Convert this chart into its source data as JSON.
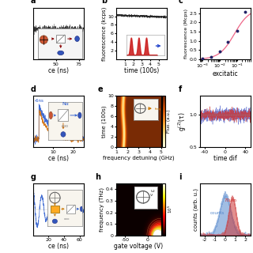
{
  "bg_color": "#f8f8f8",
  "label_fontsize": 5.5,
  "tick_fontsize": 4.5,
  "panels": {
    "a": {
      "x_ticks": [
        50,
        75
      ],
      "x_label": "ce (ns)"
    },
    "b": {
      "x_label": "time (100s)",
      "y_label": "fluorescence (kcps)",
      "y_ticks": [
        2,
        4,
        6,
        8,
        10
      ]
    },
    "c": {
      "x_label": "excitatic",
      "y_label": "fluorescence (Mcps)",
      "x_vals": [
        0.001,
        0.003,
        0.01,
        0.03,
        0.1,
        0.3
      ],
      "y_vals": [
        0.05,
        0.15,
        0.45,
        0.95,
        1.55,
        2.55
      ]
    },
    "d": {
      "x_label": "ce (ns)",
      "x_ticks": [
        10,
        20
      ]
    },
    "e": {
      "x_label": "frequency detuning (GHz)",
      "y_label": "time (100s)"
    },
    "f": {
      "x_label": "time dif",
      "y_label": "g(2)(τ)"
    },
    "g": {
      "x_label": "ce (ns)",
      "x_ticks": [
        20,
        40,
        60
      ]
    },
    "h": {
      "x_label": "gate voltage (V)",
      "y_label": "frequency (THz)",
      "x_ticks": [
        -50,
        0
      ]
    },
    "i": {
      "y_label": "counts (arb. u.)",
      "x_ticks": [
        -2,
        -1,
        0,
        1,
        2
      ]
    }
  }
}
